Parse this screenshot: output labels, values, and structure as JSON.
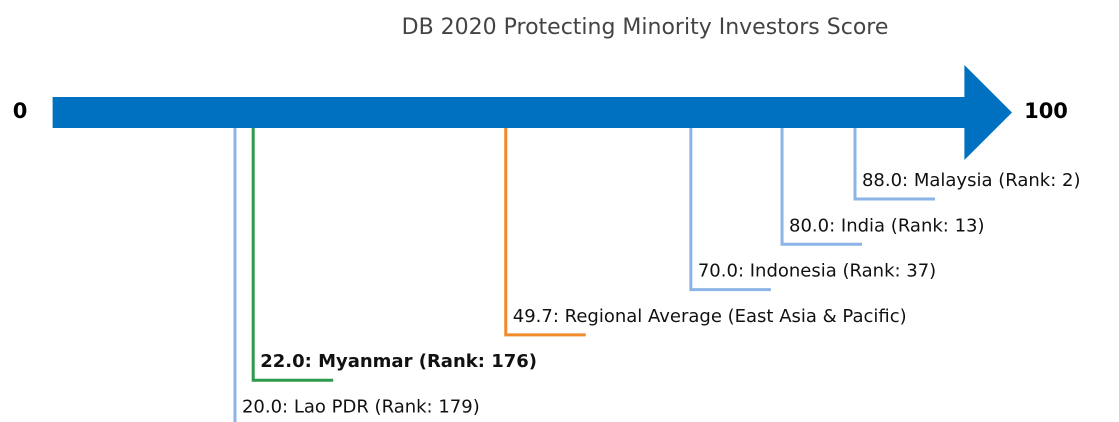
{
  "chart_data": {
    "type": "scale",
    "title": "DB 2020 Protecting Minority Investors Score",
    "xlim": [
      0,
      100
    ],
    "axis_color": "#0070c0",
    "values": [
      20,
      22,
      49.7,
      70,
      80,
      88
    ],
    "value_labels": [
      "20.0: Lao PDR (Rank: 179)",
      "22.0: Myanmar (Rank: 176)",
      "49.7: Regional Average (East Asia & Pacific)",
      "70.0: Indonesia (Rank: 37)",
      "80.0: India (Rank: 13)",
      "88.0: Malaysia (Rank: 2)"
    ],
    "colors": [
      "#8db4e6",
      "#2e9a4e",
      "#f08a2a",
      "#8db4e6",
      "#8db4e6",
      "#8db4e6"
    ],
    "bold": [
      false,
      true,
      false,
      false,
      false,
      false
    ]
  }
}
